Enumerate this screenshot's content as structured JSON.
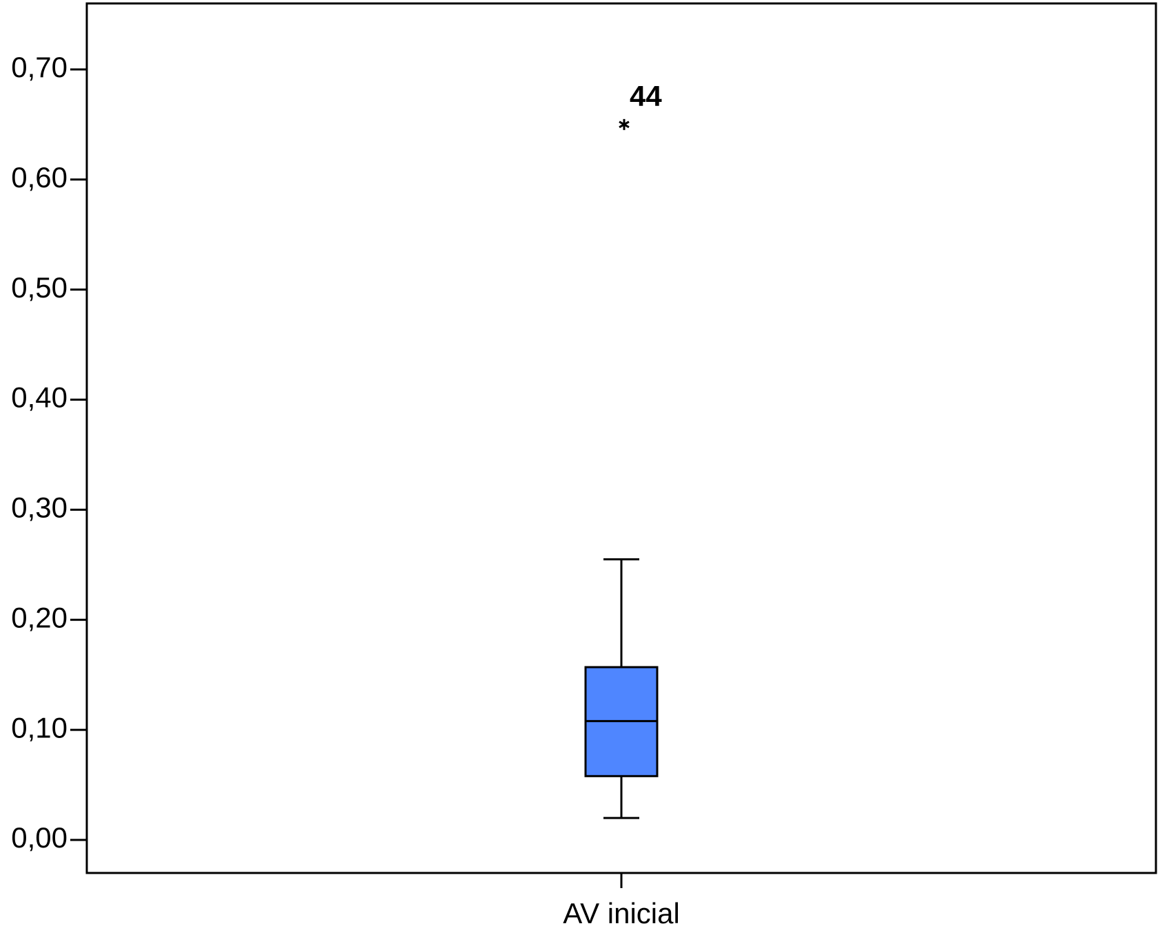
{
  "chart_data": {
    "type": "box",
    "categories": [
      "AV inicial"
    ],
    "boxes": [
      {
        "whisker_low": 0.02,
        "q1": 0.058,
        "median": 0.108,
        "q3": 0.157,
        "whisker_high": 0.255,
        "outliers": [
          0.65
        ],
        "outlier_labels": [
          "44"
        ]
      }
    ],
    "color": "#4f86ff",
    "ylim": [
      -0.03,
      0.76
    ],
    "yticks": [
      {
        "value": 0,
        "label": "0,00"
      },
      {
        "value": 0.1,
        "label": "0,10"
      },
      {
        "value": 0.2,
        "label": "0,20"
      },
      {
        "value": 0.3,
        "label": "0,30"
      },
      {
        "value": 0.4,
        "label": "0,40"
      },
      {
        "value": 0.5,
        "label": "0,50"
      },
      {
        "value": 0.6,
        "label": "0,60"
      },
      {
        "value": 0.7,
        "label": "0,70"
      }
    ],
    "grid": false
  }
}
